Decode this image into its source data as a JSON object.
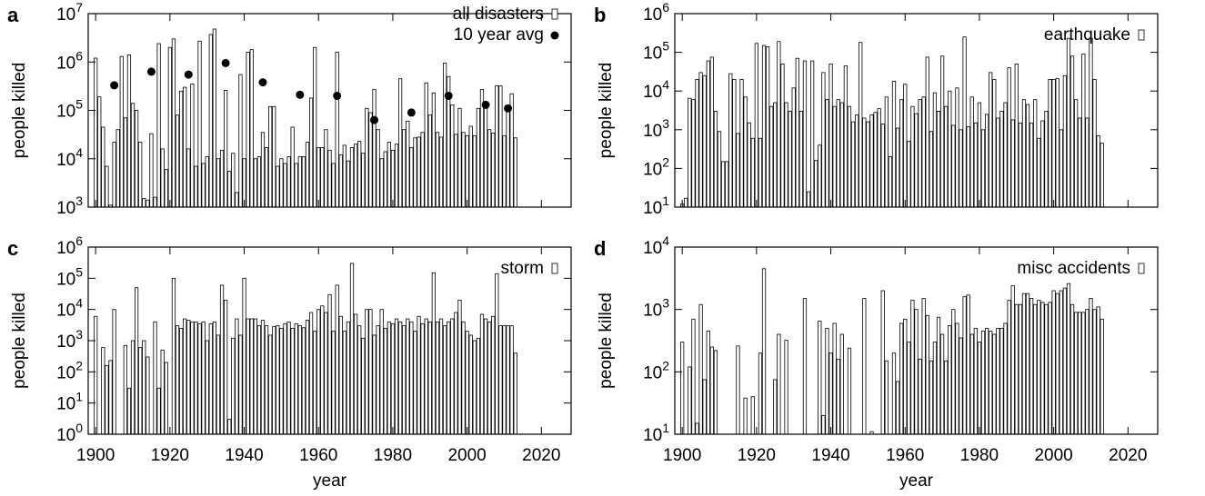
{
  "chart_data": [
    {
      "type": "bar",
      "panel": "a",
      "ylabel": "people killed",
      "log_y": true,
      "legend": "upper right",
      "xlim": [
        1898,
        2028
      ],
      "xticks": [
        1900,
        1920,
        1940,
        1960,
        1980,
        2000,
        2020
      ],
      "show_xtick_labels": false,
      "ylim": [
        1000,
        10000000
      ],
      "yticks": [
        {
          "value": 1000,
          "label": "10^3"
        },
        {
          "value": 10000,
          "label": "10^4"
        },
        {
          "value": 100000,
          "label": "10^5"
        },
        {
          "value": 1000000,
          "label": "10^6"
        },
        {
          "value": 10000000,
          "label": "10^7"
        }
      ],
      "x": [
        1900,
        1901,
        1902,
        1903,
        1904,
        1905,
        1906,
        1907,
        1908,
        1909,
        1910,
        1911,
        1912,
        1913,
        1914,
        1915,
        1916,
        1917,
        1918,
        1919,
        1920,
        1921,
        1922,
        1923,
        1924,
        1925,
        1926,
        1927,
        1928,
        1929,
        1930,
        1931,
        1932,
        1933,
        1934,
        1935,
        1936,
        1937,
        1938,
        1939,
        1940,
        1941,
        1942,
        1943,
        1944,
        1945,
        1946,
        1947,
        1948,
        1949,
        1950,
        1951,
        1952,
        1953,
        1954,
        1955,
        1956,
        1957,
        1958,
        1959,
        1960,
        1961,
        1962,
        1963,
        1964,
        1965,
        1966,
        1967,
        1968,
        1969,
        1970,
        1971,
        1972,
        1973,
        1974,
        1975,
        1976,
        1977,
        1978,
        1979,
        1980,
        1981,
        1982,
        1983,
        1984,
        1985,
        1986,
        1987,
        1988,
        1989,
        1990,
        1991,
        1992,
        1993,
        1994,
        1995,
        1996,
        1997,
        1998,
        1999,
        2000,
        2001,
        2002,
        2003,
        2004,
        2005,
        2006,
        2007,
        2008,
        2009,
        2010,
        2011,
        2012,
        2013
      ],
      "series": [
        {
          "name": "all disasters",
          "type": "bar",
          "color": "#ffffff",
          "values": [
            1200000,
            190000,
            45000,
            7000,
            1100,
            22000,
            40000,
            1300000,
            70000,
            1400000,
            140000,
            100000,
            22000,
            1500,
            1400,
            33000,
            1600,
            2400000,
            16000,
            6000,
            2000000,
            3000000,
            80000,
            250000,
            300000,
            16000,
            350000,
            7000,
            2700000,
            8000,
            11000,
            3700000,
            4800000,
            10000,
            15000,
            260000,
            5500,
            13000,
            2000,
            550000,
            10000,
            1600000,
            1800000,
            10000,
            11000,
            35000,
            17000,
            120000,
            120000,
            7000,
            10000,
            8000,
            11000,
            45000,
            8000,
            11000,
            11000,
            22000,
            180000,
            2000000,
            17000,
            17000,
            40000,
            15000,
            8000,
            1600000,
            12000,
            19000,
            9000,
            17000,
            20000,
            23000,
            13000,
            110000,
            90000,
            270000,
            40000,
            10000,
            14000,
            22000,
            15000,
            20000,
            450000,
            40000,
            60000,
            17000,
            27000,
            28000,
            35000,
            370000,
            80000,
            230000,
            35000,
            28000,
            950000,
            500000,
            130000,
            32000,
            110000,
            35000,
            30000,
            47000,
            30000,
            110000,
            270000,
            130000,
            40000,
            34000,
            320000,
            320000,
            30000,
            110000,
            220000,
            27000
          ]
        },
        {
          "name": "10 year avg",
          "type": "scatter",
          "color": "#000000",
          "x": [
            1905,
            1915,
            1925,
            1935,
            1945,
            1955,
            1965,
            1975,
            1985,
            1995,
            2005,
            2011
          ],
          "values": [
            330000,
            630000,
            550000,
            950000,
            380000,
            210000,
            200000,
            63000,
            90000,
            200000,
            130000,
            110000
          ]
        }
      ]
    },
    {
      "type": "bar",
      "panel": "b",
      "ylabel": "people killed",
      "log_y": true,
      "legend": "upper right",
      "xlim": [
        1898,
        2028
      ],
      "xticks": [
        1900,
        1920,
        1940,
        1960,
        1980,
        2000,
        2020
      ],
      "show_xtick_labels": false,
      "ylim": [
        10,
        1000000
      ],
      "yticks": [
        {
          "value": 10,
          "label": "10^1"
        },
        {
          "value": 100,
          "label": "10^2"
        },
        {
          "value": 1000,
          "label": "10^3"
        },
        {
          "value": 10000,
          "label": "10^4"
        },
        {
          "value": 100000,
          "label": "10^5"
        },
        {
          "value": 1000000,
          "label": "10^6"
        }
      ],
      "x": [
        1900,
        1901,
        1902,
        1903,
        1904,
        1905,
        1906,
        1907,
        1908,
        1909,
        1910,
        1911,
        1912,
        1913,
        1914,
        1915,
        1916,
        1917,
        1918,
        1919,
        1920,
        1921,
        1922,
        1923,
        1924,
        1925,
        1926,
        1927,
        1928,
        1929,
        1930,
        1931,
        1932,
        1933,
        1934,
        1935,
        1936,
        1937,
        1938,
        1939,
        1940,
        1941,
        1942,
        1943,
        1944,
        1945,
        1946,
        1947,
        1948,
        1949,
        1950,
        1951,
        1952,
        1953,
        1954,
        1955,
        1956,
        1957,
        1958,
        1959,
        1960,
        1961,
        1962,
        1963,
        1964,
        1965,
        1966,
        1967,
        1968,
        1969,
        1970,
        1971,
        1972,
        1973,
        1974,
        1975,
        1976,
        1977,
        1978,
        1979,
        1980,
        1981,
        1982,
        1983,
        1984,
        1985,
        1986,
        1987,
        1988,
        1989,
        1990,
        1991,
        1992,
        1993,
        1994,
        1995,
        1996,
        1997,
        1998,
        1999,
        2000,
        2001,
        2002,
        2003,
        2004,
        2005,
        2006,
        2007,
        2008,
        2009,
        2010,
        2011,
        2012,
        2013
      ],
      "series": [
        {
          "name": "earthquake",
          "type": "bar",
          "color": "#ffffff",
          "values": [
            12,
            17,
            6500,
            6000,
            20000,
            30000,
            25000,
            60000,
            75000,
            3000,
            900,
            150,
            150,
            28000,
            20000,
            800,
            20000,
            7000,
            1500,
            600,
            170000,
            600,
            150000,
            140000,
            4000,
            5000,
            190000,
            50000,
            5000,
            3000,
            12000,
            70000,
            3000,
            60000,
            25,
            60000,
            160,
            400,
            30000,
            6000,
            50000,
            4000,
            6000,
            5000,
            45000,
            4000,
            1600,
            2400,
            180000,
            2000,
            1600,
            2400,
            2800,
            3500,
            1400,
            7000,
            200,
            18000,
            1100,
            6000,
            15000,
            500,
            4000,
            2600,
            6000,
            7000,
            75000,
            900,
            9000,
            3000,
            80000,
            4000,
            10000,
            1300,
            12000,
            1000,
            250000,
            1200,
            7000,
            1500,
            5000,
            1000,
            2500,
            30000,
            20000,
            2000,
            3000,
            5000,
            40000,
            1800,
            50000,
            1500,
            6000,
            4500,
            1500,
            6000,
            600,
            1700,
            3000,
            20000,
            20000,
            21000,
            1000,
            25000,
            230000,
            80000,
            6000,
            2000,
            90000,
            2000,
            230000,
            20000,
            700,
            450
          ]
        }
      ]
    },
    {
      "type": "bar",
      "panel": "c",
      "ylabel": "people killed",
      "xlabel": "year",
      "log_y": true,
      "legend": "upper right",
      "xlim": [
        1898,
        2028
      ],
      "xticks": [
        1900,
        1920,
        1940,
        1960,
        1980,
        2000,
        2020
      ],
      "show_xtick_labels": true,
      "ylim": [
        1,
        1000000
      ],
      "yticks": [
        {
          "value": 1,
          "label": "10^0"
        },
        {
          "value": 10,
          "label": "10^1"
        },
        {
          "value": 100,
          "label": "10^2"
        },
        {
          "value": 1000,
          "label": "10^3"
        },
        {
          "value": 10000,
          "label": "10^4"
        },
        {
          "value": 100000,
          "label": "10^5"
        },
        {
          "value": 1000000,
          "label": "10^6"
        }
      ],
      "x": [
        1900,
        1901,
        1902,
        1903,
        1904,
        1905,
        1906,
        1907,
        1908,
        1909,
        1910,
        1911,
        1912,
        1913,
        1914,
        1915,
        1916,
        1917,
        1918,
        1919,
        1920,
        1921,
        1922,
        1923,
        1924,
        1925,
        1926,
        1927,
        1928,
        1929,
        1930,
        1931,
        1932,
        1933,
        1934,
        1935,
        1936,
        1937,
        1938,
        1939,
        1940,
        1941,
        1942,
        1943,
        1944,
        1945,
        1946,
        1947,
        1948,
        1949,
        1950,
        1951,
        1952,
        1953,
        1954,
        1955,
        1956,
        1957,
        1958,
        1959,
        1960,
        1961,
        1962,
        1963,
        1964,
        1965,
        1966,
        1967,
        1968,
        1969,
        1970,
        1971,
        1972,
        1973,
        1974,
        1975,
        1976,
        1977,
        1978,
        1979,
        1980,
        1981,
        1982,
        1983,
        1984,
        1985,
        1986,
        1987,
        1988,
        1989,
        1990,
        1991,
        1992,
        1993,
        1994,
        1995,
        1996,
        1997,
        1998,
        1999,
        2000,
        2001,
        2002,
        2003,
        2004,
        2005,
        2006,
        2007,
        2008,
        2009,
        2010,
        2011,
        2012,
        2013
      ],
      "series": [
        {
          "name": "storm",
          "type": "bar",
          "color": "#ffffff",
          "values": [
            6000,
            null,
            600,
            160,
            230,
            10000,
            null,
            null,
            700,
            30,
            1000,
            50000,
            600,
            1000,
            300,
            null,
            4000,
            30,
            500,
            200,
            null,
            100000,
            3000,
            2500,
            5000,
            4500,
            4000,
            4000,
            3500,
            4000,
            1000,
            3500,
            4000,
            1500,
            60000,
            20000,
            3,
            1200,
            5000,
            1500,
            100000,
            5000,
            5000,
            5000,
            3000,
            4500,
            3000,
            1500,
            2800,
            3000,
            2500,
            3500,
            4000,
            2500,
            3500,
            3000,
            2600,
            4500,
            8000,
            2000,
            10000,
            13000,
            8000,
            30000,
            2000,
            60000,
            6000,
            2000,
            4000,
            300000,
            7000,
            3000,
            1200,
            10000,
            10000,
            1500,
            3000,
            10000,
            2500,
            4000,
            3500,
            5000,
            4000,
            3000,
            5000,
            4000,
            2000,
            6000,
            3500,
            5000,
            4000,
            150000,
            4000,
            5000,
            3000,
            4000,
            5000,
            8000,
            20000,
            4000,
            2000,
            1500,
            1000,
            1200,
            7000,
            5000,
            4000,
            6000,
            140000,
            3000,
            3000,
            3000,
            3000,
            400
          ]
        }
      ]
    },
    {
      "type": "bar",
      "panel": "d",
      "ylabel": "people killed",
      "xlabel": "year",
      "log_y": true,
      "legend": "upper right",
      "xlim": [
        1898,
        2028
      ],
      "xticks": [
        1900,
        1920,
        1940,
        1960,
        1980,
        2000,
        2020
      ],
      "show_xtick_labels": true,
      "ylim": [
        10,
        10000
      ],
      "yticks": [
        {
          "value": 10,
          "label": "10^1"
        },
        {
          "value": 100,
          "label": "10^2"
        },
        {
          "value": 1000,
          "label": "10^3"
        },
        {
          "value": 10000,
          "label": "10^4"
        }
      ],
      "x": [
        1900,
        1901,
        1902,
        1903,
        1904,
        1905,
        1906,
        1907,
        1908,
        1909,
        1910,
        1911,
        1912,
        1913,
        1914,
        1915,
        1916,
        1917,
        1918,
        1919,
        1920,
        1921,
        1922,
        1923,
        1924,
        1925,
        1926,
        1927,
        1928,
        1929,
        1930,
        1931,
        1932,
        1933,
        1934,
        1935,
        1936,
        1937,
        1938,
        1939,
        1940,
        1941,
        1942,
        1943,
        1944,
        1945,
        1946,
        1947,
        1948,
        1949,
        1950,
        1951,
        1952,
        1953,
        1954,
        1955,
        1956,
        1957,
        1958,
        1959,
        1960,
        1961,
        1962,
        1963,
        1964,
        1965,
        1966,
        1967,
        1968,
        1969,
        1970,
        1971,
        1972,
        1973,
        1974,
        1975,
        1976,
        1977,
        1978,
        1979,
        1980,
        1981,
        1982,
        1983,
        1984,
        1985,
        1986,
        1987,
        1988,
        1989,
        1990,
        1991,
        1992,
        1993,
        1994,
        1995,
        1996,
        1997,
        1998,
        1999,
        2000,
        2001,
        2002,
        2003,
        2004,
        2005,
        2006,
        2007,
        2008,
        2009,
        2010,
        2011,
        2012,
        2013
      ],
      "series": [
        {
          "name": "misc accidents",
          "type": "bar",
          "color": "#ffffff",
          "values": [
            300,
            null,
            120,
            700,
            15,
            1200,
            75,
            450,
            250,
            220,
            null,
            null,
            null,
            null,
            null,
            260,
            null,
            38,
            null,
            40,
            null,
            200,
            4500,
            null,
            null,
            75,
            400,
            null,
            320,
            null,
            null,
            null,
            null,
            1500,
            null,
            null,
            null,
            650,
            20,
            500,
            200,
            600,
            160,
            400,
            null,
            240,
            null,
            null,
            null,
            1500,
            null,
            11,
            null,
            null,
            2000,
            150,
            null,
            200,
            70,
            600,
            700,
            300,
            1400,
            1000,
            160,
            1500,
            800,
            150,
            300,
            750,
            400,
            150,
            550,
            1000,
            600,
            350,
            1600,
            1700,
            400,
            500,
            300,
            450,
            500,
            450,
            400,
            500,
            500,
            600,
            1400,
            2400,
            1200,
            1200,
            1800,
            1800,
            1500,
            1200,
            1400,
            1300,
            1200,
            1300,
            2000,
            1800,
            2000,
            2200,
            2600,
            1200,
            900,
            900,
            900,
            1000,
            1500,
            1000,
            1100,
            700
          ]
        }
      ]
    }
  ]
}
